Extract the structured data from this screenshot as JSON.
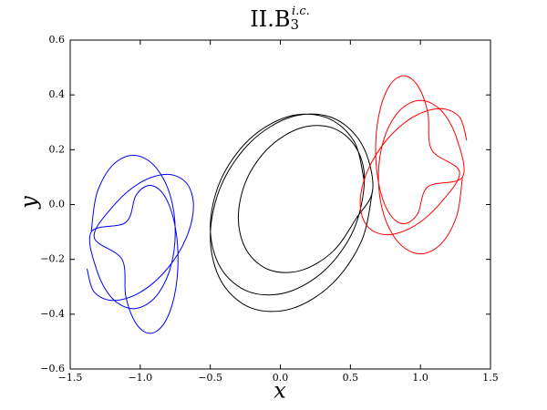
{
  "chart_data": {
    "type": "line",
    "title": "II.B",
    "title_subscript": "3",
    "title_superscript": "i.c.",
    "xlabel": "x",
    "ylabel": "y",
    "xlim": [
      -1.5,
      1.5
    ],
    "ylim": [
      -0.6,
      0.6
    ],
    "xticks": [
      {
        "value": -1.5,
        "label": "−1.5"
      },
      {
        "value": -1.0,
        "label": "−1.0"
      },
      {
        "value": -0.5,
        "label": "−0.5"
      },
      {
        "value": 0,
        "label": "0.0"
      },
      0.5,
      {
        "value": 1,
        "label": "1.0"
      },
      1.5
    ],
    "yticks": [
      {
        "value": -0.6,
        "label": "−0.6"
      },
      {
        "value": -0.4,
        "label": "−0.4"
      },
      {
        "value": -0.2,
        "label": "−0.2"
      },
      {
        "value": 0,
        "label": "0.0"
      },
      0.2,
      0.4,
      0.6
    ],
    "series": [
      {
        "color": "#000000",
        "x": [
          0.6,
          0.526,
          0.325,
          0.05,
          -0.225,
          -0.426,
          -0.5,
          -0.426,
          -0.225,
          0.05,
          0.325,
          0.526,
          0.6,
          0.54,
          0.375,
          0.15,
          -0.075,
          -0.24,
          -0.3,
          -0.24,
          -0.075,
          0.15,
          0.375,
          0.54,
          0.66,
          0.582,
          0.37,
          0.08,
          -0.21,
          -0.422,
          -0.5,
          -0.422,
          -0.21,
          0.08,
          0.37,
          0.582,
          0.66
        ],
        "y": [
          0.083,
          0.231,
          0.318,
          0.32,
          0.236,
          0.089,
          -0.083,
          -0.231,
          -0.318,
          -0.32,
          -0.236,
          -0.089,
          0.088,
          0.208,
          0.279,
          0.28,
          0.211,
          0.092,
          -0.048,
          -0.168,
          -0.239,
          -0.24,
          -0.171,
          -0.052,
          0.057,
          0.22,
          0.317,
          0.32,
          0.229,
          0.07,
          -0.117,
          -0.28,
          -0.377,
          -0.38,
          -0.289,
          -0.13,
          0.057
        ]
      },
      {
        "color": "#ff0000",
        "x": [
          1.33,
          1.279,
          1.14,
          0.95,
          0.76,
          0.621,
          0.57,
          0.621,
          0.76,
          0.95,
          1.14,
          1.279,
          1.08,
          1.053,
          0.98,
          0.88,
          0.78,
          0.707,
          0.68,
          0.707,
          0.78,
          0.88,
          0.98,
          1.053,
          1.3,
          1.26,
          1.15,
          1.0,
          0.85,
          0.74,
          0.7,
          0.74,
          0.85,
          1.0,
          1.15,
          1.26,
          1.3
        ],
        "y": [
          0.234,
          0.319,
          0.35,
          0.32,
          0.236,
          0.121,
          0.006,
          -0.079,
          -0.11,
          -0.08,
          0.004,
          0.119,
          0.2,
          0.335,
          0.434,
          0.47,
          0.434,
          0.335,
          0.2,
          0.065,
          -0.034,
          -0.07,
          -0.034,
          0.065,
          0.1,
          0.24,
          0.342,
          0.38,
          0.342,
          0.24,
          0.1,
          -0.04,
          -0.142,
          -0.18,
          -0.142,
          -0.04,
          0.1
        ]
      },
      {
        "color": "#0000ff",
        "x": [
          -1.38,
          -1.329,
          -1.19,
          -1.0,
          -0.81,
          -0.671,
          -0.62,
          -0.671,
          -0.81,
          -1.0,
          -1.19,
          -1.329,
          -1.13,
          -1.103,
          -1.03,
          -0.93,
          -0.83,
          -0.757,
          -0.73,
          -0.757,
          -0.83,
          -0.93,
          -1.03,
          -1.103,
          -1.35,
          -1.31,
          -1.2,
          -1.05,
          -0.9,
          -0.79,
          -0.75,
          -0.79,
          -0.9,
          -1.05,
          -1.2,
          -1.31,
          -1.35
        ],
        "y": [
          -0.234,
          -0.319,
          -0.35,
          -0.32,
          -0.236,
          -0.121,
          -0.006,
          0.079,
          0.11,
          0.08,
          -0.004,
          -0.119,
          -0.2,
          -0.335,
          -0.434,
          -0.47,
          -0.434,
          -0.335,
          -0.2,
          -0.065,
          0.034,
          0.07,
          0.034,
          -0.065,
          -0.1,
          -0.24,
          -0.342,
          -0.38,
          -0.342,
          -0.24,
          -0.1,
          0.04,
          0.142,
          0.18,
          0.142,
          0.04,
          -0.1
        ]
      }
    ]
  }
}
